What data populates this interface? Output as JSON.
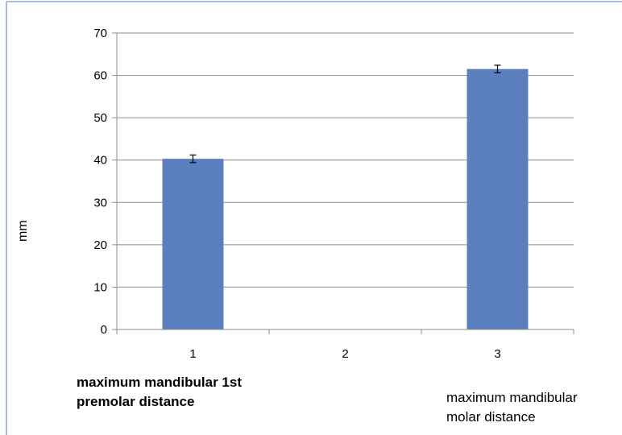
{
  "chart_data": {
    "type": "bar",
    "categories": [
      "1",
      "2",
      "3"
    ],
    "values": [
      40.3,
      null,
      61.5
    ],
    "error": [
      0.9,
      null,
      0.9
    ],
    "ylim": [
      0,
      70
    ],
    "yticks": [
      0,
      10,
      20,
      30,
      40,
      50,
      60,
      70
    ],
    "ylabel": "mm",
    "xlabel": "",
    "title": "",
    "grid": true,
    "bar_color": "#5b7fbe",
    "grid_color": "#8c8c8c"
  },
  "annotations": {
    "left_line1": "maximum mandibular 1st",
    "left_line2": "premolar distance",
    "right_line1": "maximum mandibular",
    "right_line2": "molar distance"
  },
  "colors": {
    "frame": "#8fa6cc"
  }
}
